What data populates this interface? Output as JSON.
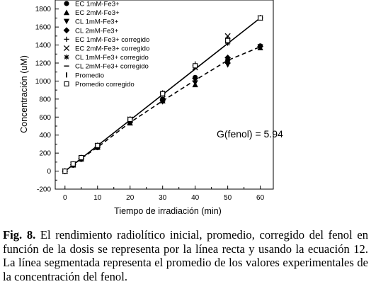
{
  "chart_data": {
    "type": "scatter",
    "xlabel": "Tiempo de irradiación (min)",
    "ylabel": "Concentración (uM)",
    "xlim": [
      -3,
      64
    ],
    "ylim": [
      -200,
      1900
    ],
    "xticks": [
      0,
      10,
      20,
      30,
      40,
      50,
      60
    ],
    "xtick_labels": [
      "0",
      "10",
      "20",
      "30",
      "40",
      "50",
      "60"
    ],
    "yticks": [
      -200,
      0,
      200,
      400,
      600,
      800,
      1000,
      1200,
      1400,
      1600,
      1800
    ],
    "ytick_labels": [
      "-200",
      "0",
      "200",
      "400",
      "600",
      "800",
      "1000",
      "1200",
      "1400",
      "1600",
      "1800"
    ],
    "annotation": "G(fenol) = 5.94",
    "legend_position": "top-left",
    "x": [
      0,
      2.5,
      5,
      10,
      20,
      30,
      40,
      50,
      60
    ],
    "series": [
      {
        "name": "EC 1mM-Fe3+",
        "marker": "circle",
        "values": [
          0,
          65,
          130,
          260,
          545,
          800,
          1040,
          1230,
          1390
        ]
      },
      {
        "name": "EC 2mM-Fe3+",
        "marker": "triangle-up",
        "values": [
          0,
          68,
          135,
          265,
          535,
          780,
          960,
          1220,
          1370
        ]
      },
      {
        "name": "CL 1mM-Fe3+",
        "marker": "triangle-down",
        "values": [
          0,
          72,
          140,
          270,
          540,
          770,
          980,
          1180,
          1380
        ]
      },
      {
        "name": "CL 2mM-Fe3+",
        "marker": "diamond",
        "values": [
          0,
          70,
          140,
          270,
          545,
          780,
          1030,
          1260,
          1385
        ]
      },
      {
        "name": "EC 1mM-Fe3+ corregido",
        "marker": "plus",
        "values": [
          0,
          80,
          150,
          285,
          580,
          860,
          1190,
          1470,
          1705
        ]
      },
      {
        "name": "EC 2mM-Fe3+ corregido",
        "marker": "x",
        "values": [
          0,
          78,
          148,
          282,
          575,
          850,
          1150,
          1500,
          1700
        ]
      },
      {
        "name": "CL 1mM-Fe3+ corregido",
        "marker": "asterisk",
        "values": [
          0,
          80,
          152,
          288,
          570,
          870,
          1170,
          1420,
          1700
        ]
      },
      {
        "name": "CL 2mM-Fe3+ corregido",
        "marker": "dash",
        "values": [
          0,
          78,
          150,
          285,
          572,
          855,
          1160,
          1440,
          1700
        ]
      },
      {
        "name": "Promedio",
        "marker": "bar",
        "values": [
          0,
          70,
          140,
          265,
          540,
          780,
          1010,
          1230,
          1380
        ]
      },
      {
        "name": "Promedio corregido",
        "marker": "square",
        "values": [
          0,
          80,
          150,
          285,
          575,
          860,
          1170,
          1450,
          1700
        ]
      }
    ],
    "lines": [
      {
        "style": "solid",
        "x": [
          0,
          60
        ],
        "y": [
          0,
          1700
        ]
      },
      {
        "style": "dashed",
        "x": [
          0,
          2.5,
          5,
          10,
          20,
          30,
          40,
          50,
          60
        ],
        "y": [
          0,
          70,
          140,
          265,
          540,
          780,
          1010,
          1230,
          1380
        ]
      }
    ]
  },
  "caption": {
    "label": "Fig. 8.",
    "text": " El rendimiento radiolítico inicial, promedio, corregido del fenol en función de la dosis se representa por la línea recta y usando la ecuación 12. La línea segmentada representa el promedio de los valores experimentales de la concentración del fenol."
  }
}
